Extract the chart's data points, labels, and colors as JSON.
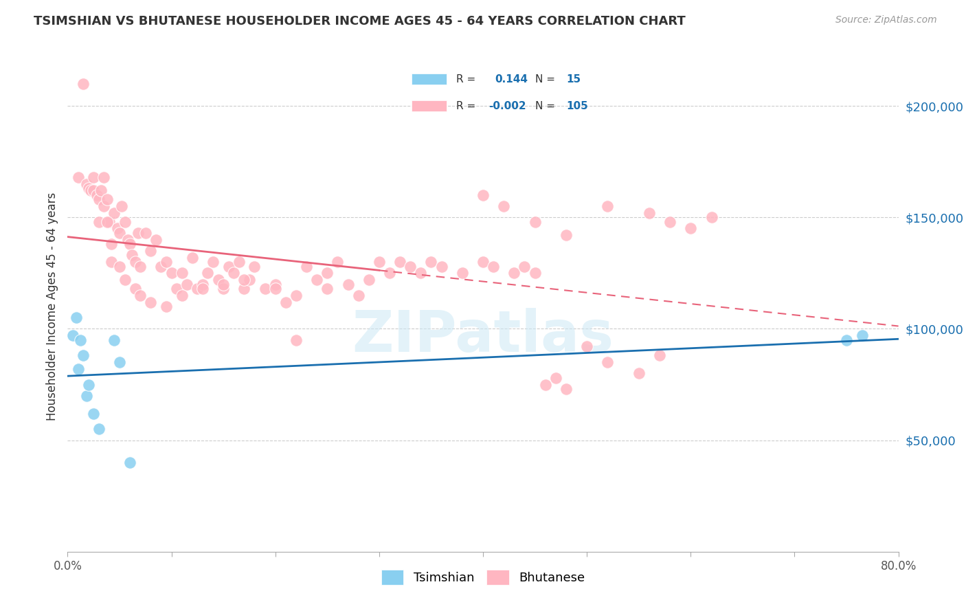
{
  "title": "TSIMSHIAN VS BHUTANESE HOUSEHOLDER INCOME AGES 45 - 64 YEARS CORRELATION CHART",
  "source": "Source: ZipAtlas.com",
  "ylabel": "Householder Income Ages 45 - 64 years",
  "ytick_labels": [
    "$50,000",
    "$100,000",
    "$150,000",
    "$200,000"
  ],
  "ytick_values": [
    50000,
    100000,
    150000,
    200000
  ],
  "ymin": 0,
  "ymax": 220000,
  "xmin": 0.0,
  "xmax": 80.0,
  "tsimshian_color": "#89CFF0",
  "tsimshian_line_color": "#1a6faf",
  "bhutanese_color": "#FFB6C1",
  "bhutanese_line_color": "#E8637A",
  "legend_label1": "Tsimshian",
  "legend_label2": "Bhutanese",
  "tsimshian_x": [
    0.5,
    0.8,
    1.0,
    1.2,
    1.5,
    1.8,
    2.0,
    2.5,
    3.0,
    4.5,
    5.0,
    6.0,
    75.0,
    76.5
  ],
  "tsimshian_y": [
    97000,
    105000,
    82000,
    95000,
    88000,
    70000,
    75000,
    62000,
    55000,
    95000,
    85000,
    40000,
    95000,
    97000
  ],
  "bhutanese_x": [
    1.0,
    1.5,
    1.8,
    2.0,
    2.2,
    2.5,
    2.5,
    2.8,
    3.0,
    3.2,
    3.5,
    3.5,
    3.8,
    4.0,
    4.2,
    4.5,
    4.8,
    5.0,
    5.2,
    5.5,
    5.8,
    6.0,
    6.2,
    6.5,
    6.8,
    7.0,
    7.5,
    8.0,
    8.5,
    9.0,
    9.5,
    10.0,
    10.5,
    11.0,
    11.5,
    12.0,
    12.5,
    13.0,
    13.5,
    14.0,
    14.5,
    15.0,
    15.5,
    16.0,
    16.5,
    17.0,
    17.5,
    18.0,
    19.0,
    20.0,
    21.0,
    22.0,
    23.0,
    24.0,
    25.0,
    26.0,
    27.0,
    28.0,
    29.0,
    30.0,
    31.0,
    32.0,
    33.0,
    34.0,
    35.0,
    36.0,
    38.0,
    40.0,
    41.0,
    43.0,
    44.0,
    45.0,
    46.0,
    47.0,
    48.0,
    50.0,
    52.0,
    55.0,
    57.0,
    40.0,
    42.0,
    45.0,
    48.0,
    52.0,
    56.0,
    58.0,
    60.0,
    62.0,
    3.0,
    3.8,
    4.2,
    5.0,
    5.5,
    6.5,
    7.0,
    8.0,
    9.5,
    11.0,
    13.0,
    15.0,
    17.0,
    20.0,
    22.0,
    25.0
  ],
  "bhutanese_y": [
    168000,
    210000,
    165000,
    163000,
    162000,
    162000,
    168000,
    160000,
    158000,
    162000,
    168000,
    155000,
    158000,
    148000,
    130000,
    152000,
    145000,
    143000,
    155000,
    148000,
    140000,
    138000,
    133000,
    130000,
    143000,
    128000,
    143000,
    135000,
    140000,
    128000,
    130000,
    125000,
    118000,
    125000,
    120000,
    132000,
    118000,
    120000,
    125000,
    130000,
    122000,
    118000,
    128000,
    125000,
    130000,
    118000,
    122000,
    128000,
    118000,
    120000,
    112000,
    95000,
    128000,
    122000,
    125000,
    130000,
    120000,
    115000,
    122000,
    130000,
    125000,
    130000,
    128000,
    125000,
    130000,
    128000,
    125000,
    130000,
    128000,
    125000,
    128000,
    125000,
    75000,
    78000,
    73000,
    92000,
    85000,
    80000,
    88000,
    160000,
    155000,
    148000,
    142000,
    155000,
    152000,
    148000,
    145000,
    150000,
    148000,
    148000,
    138000,
    128000,
    122000,
    118000,
    115000,
    112000,
    110000,
    115000,
    118000,
    120000,
    122000,
    118000,
    115000,
    118000
  ]
}
